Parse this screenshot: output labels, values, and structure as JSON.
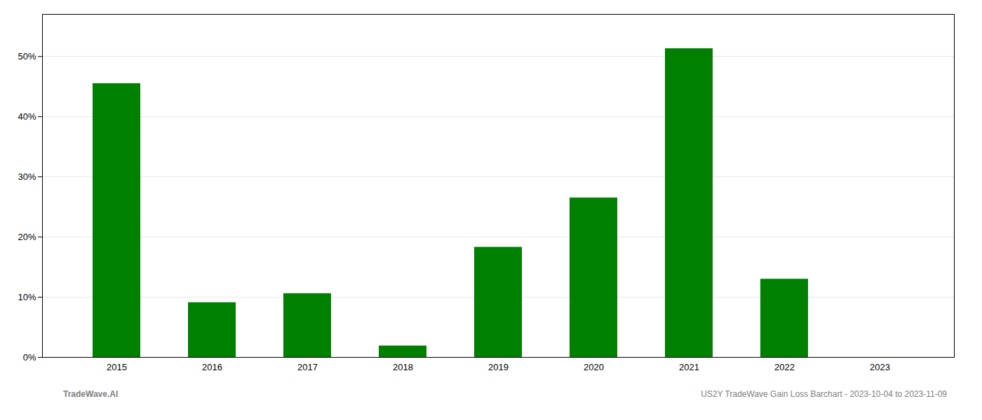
{
  "chart_data": {
    "type": "bar",
    "categories": [
      "2015",
      "2016",
      "2017",
      "2018",
      "2019",
      "2020",
      "2021",
      "2022",
      "2023"
    ],
    "values": [
      0.455,
      0.091,
      0.106,
      0.019,
      0.183,
      0.265,
      0.513,
      0.13,
      0.0
    ],
    "color": "#008000",
    "ylim": [
      0,
      0.57
    ],
    "yticks": [
      {
        "value": 0.0,
        "label": "0%"
      },
      {
        "value": 0.1,
        "label": "10%"
      },
      {
        "value": 0.2,
        "label": "20%"
      },
      {
        "value": 0.3,
        "label": "30%"
      },
      {
        "value": 0.4,
        "label": "40%"
      },
      {
        "value": 0.5,
        "label": "50%"
      }
    ],
    "grid": true,
    "annotations": [
      "TradeWave.AI",
      "US2Y TradeWave Gain Loss Barchart - 2023-10-04 to 2023-11-09"
    ]
  }
}
